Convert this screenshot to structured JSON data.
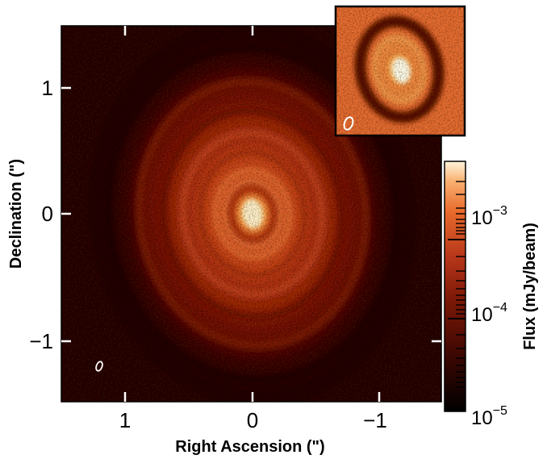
{
  "main_plot": {
    "xlabel": "Right Ascension (\")",
    "ylabel": "Declination (\")",
    "x_ticks": [
      "1",
      "0",
      "−1"
    ],
    "y_ticks": [
      "1",
      "0",
      "−1"
    ],
    "x_range": [
      1.5,
      -1.5
    ],
    "y_range": [
      -1.5,
      1.5
    ],
    "colormap": [
      "#000000",
      "#5a0a00",
      "#a82f10",
      "#e2662a",
      "#f8a25a",
      "#fff4d8"
    ]
  },
  "colorbar": {
    "label": "Flux (mJy/beam)",
    "tick_labels": [
      "10",
      "10",
      "10"
    ],
    "tick_exponents": [
      "−3",
      "−4",
      "−5"
    ],
    "scale": "log",
    "range": [
      "1e-5",
      "3e-3"
    ]
  },
  "inset": {
    "description_visible": false
  }
}
